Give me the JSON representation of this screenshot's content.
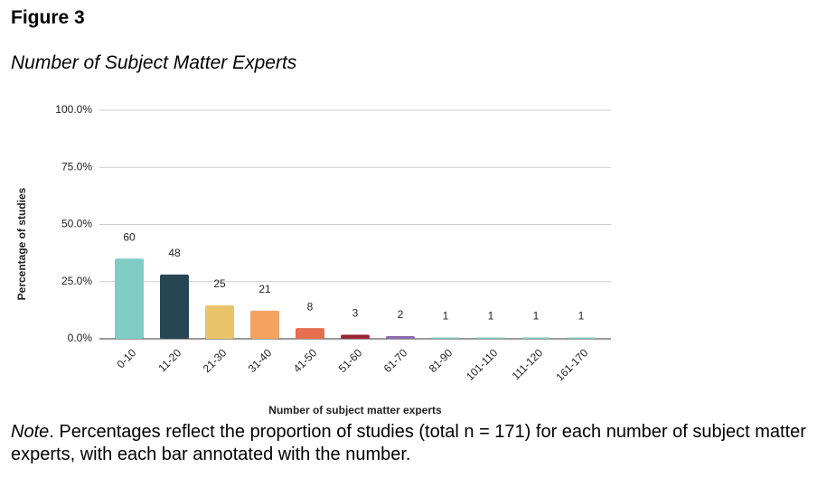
{
  "figure": {
    "label": "Figure 3",
    "title": "Number of Subject Matter Experts"
  },
  "chart_data": {
    "type": "bar",
    "x_label": "Number of subject matter experts",
    "y_label": "Percentage of studies",
    "categories": [
      "0-10",
      "11-20",
      "21-30",
      "31-40",
      "41-50",
      "51-60",
      "61-70",
      "81-90",
      "101-110",
      "111-120",
      "161-170"
    ],
    "values": [
      35.1,
      28.1,
      14.6,
      12.3,
      4.7,
      1.8,
      1.2,
      0.6,
      0.6,
      0.6,
      0.6
    ],
    "counts": [
      60,
      48,
      25,
      21,
      8,
      3,
      2,
      1,
      1,
      1,
      1
    ],
    "colors": [
      "#7fcdc4",
      "#264653",
      "#e9c46a",
      "#f4a261",
      "#e76f51",
      "#9b2335",
      "#8e6bb0",
      "#7fcdc4",
      "#7fcdc4",
      "#7fcdc4",
      "#7fcdc4"
    ],
    "ylim": [
      0,
      100
    ],
    "yticks": [
      {
        "value": 0,
        "label": "0.0%"
      },
      {
        "value": 25,
        "label": "25.0%"
      },
      {
        "value": 50,
        "label": "50.0%"
      },
      {
        "value": 75,
        "label": "75.0%"
      },
      {
        "value": 100,
        "label": "100.0%"
      }
    ],
    "grid": true
  },
  "note": {
    "label": "Note",
    "text": ". Percentages reflect the proportion of studies (total n = 171) for each number of subject matter experts, with each bar annotated with the number."
  }
}
